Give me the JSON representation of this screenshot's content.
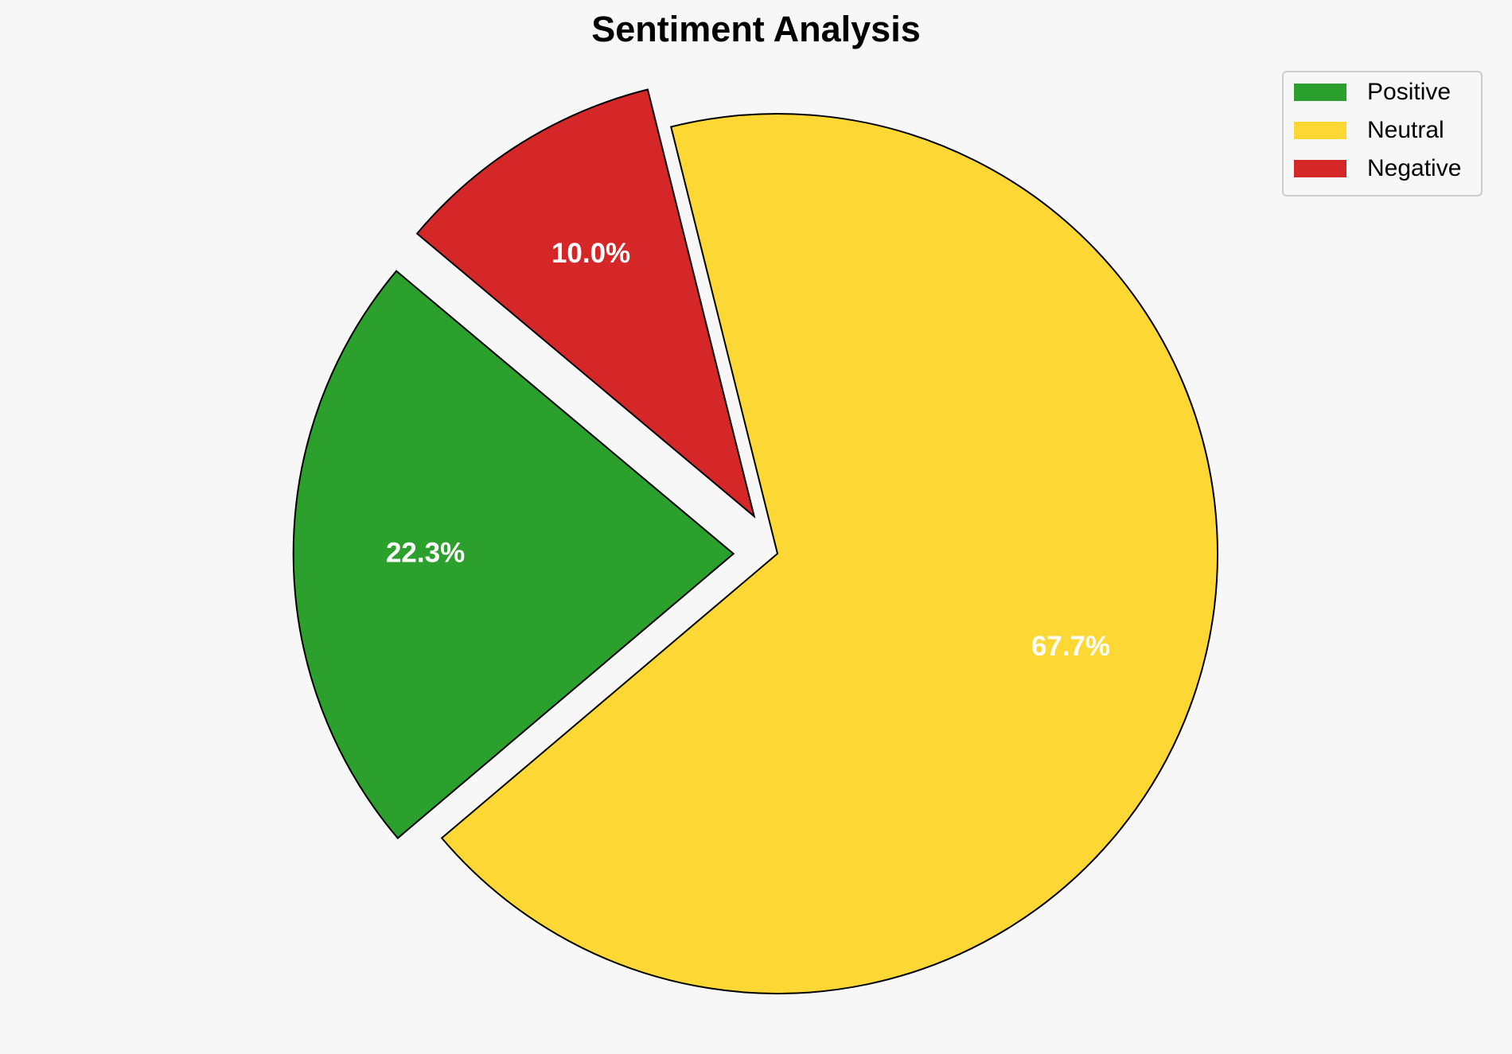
{
  "chart_data": {
    "type": "pie",
    "title": "Sentiment Analysis",
    "categories": [
      "Positive",
      "Neutral",
      "Negative"
    ],
    "values": [
      22.3,
      67.7,
      10
    ],
    "value_labels": [
      "22.3%",
      "67.7%",
      "10.0%"
    ],
    "colors": [
      "#2ca02c",
      "#fdd835",
      "#d62728"
    ],
    "explode": [
      0.1,
      0,
      0.1
    ],
    "start_angle": 140,
    "legend": "upper right"
  }
}
